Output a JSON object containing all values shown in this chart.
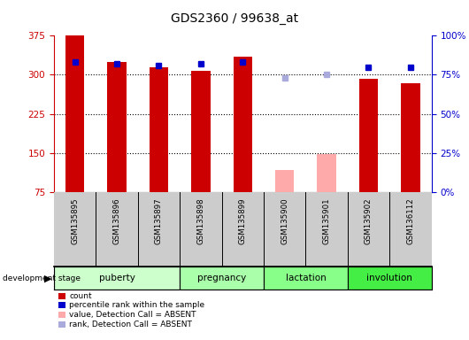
{
  "title": "GDS2360 / 99638_at",
  "samples": [
    "GSM135895",
    "GSM135896",
    "GSM135897",
    "GSM135898",
    "GSM135899",
    "GSM135900",
    "GSM135901",
    "GSM135902",
    "GSM136112"
  ],
  "count_values": [
    375,
    325,
    314,
    308,
    335,
    null,
    null,
    293,
    283
  ],
  "count_absent_values": [
    null,
    null,
    null,
    null,
    null,
    118,
    148,
    null,
    null
  ],
  "percentile_values": [
    83,
    82,
    81,
    82,
    83,
    null,
    null,
    80,
    80
  ],
  "percentile_absent_values": [
    null,
    null,
    null,
    null,
    null,
    73,
    75,
    null,
    null
  ],
  "ylim_left": [
    75,
    375
  ],
  "ylim_right": [
    0,
    100
  ],
  "yticks_left": [
    75,
    150,
    225,
    300,
    375
  ],
  "yticks_right": [
    0,
    25,
    50,
    75,
    100
  ],
  "ytick_labels_right": [
    "0%",
    "25%",
    "50%",
    "75%",
    "100%"
  ],
  "stages": [
    {
      "label": "puberty",
      "start": 0,
      "end": 3
    },
    {
      "label": "pregnancy",
      "start": 3,
      "end": 5
    },
    {
      "label": "lactation",
      "start": 5,
      "end": 7
    },
    {
      "label": "involution",
      "start": 7,
      "end": 9
    }
  ],
  "stage_colors": [
    "#ccffcc",
    "#aaffaa",
    "#88ff88",
    "#44ee44"
  ],
  "count_color": "#cc0000",
  "count_absent_color": "#ffaaaa",
  "percentile_color": "#0000cc",
  "percentile_absent_color": "#aaaadd",
  "bar_base": 75,
  "grid_yticks": [
    150,
    225,
    300
  ],
  "background_color": "#ffffff",
  "sample_bg_color": "#cccccc",
  "left_axis_color": "#cc0000",
  "right_axis_color": "#0000cc",
  "legend_items": [
    {
      "label": "count",
      "color": "#cc0000"
    },
    {
      "label": "percentile rank within the sample",
      "color": "#0000cc"
    },
    {
      "label": "value, Detection Call = ABSENT",
      "color": "#ffaaaa"
    },
    {
      "label": "rank, Detection Call = ABSENT",
      "color": "#aaaadd"
    }
  ]
}
